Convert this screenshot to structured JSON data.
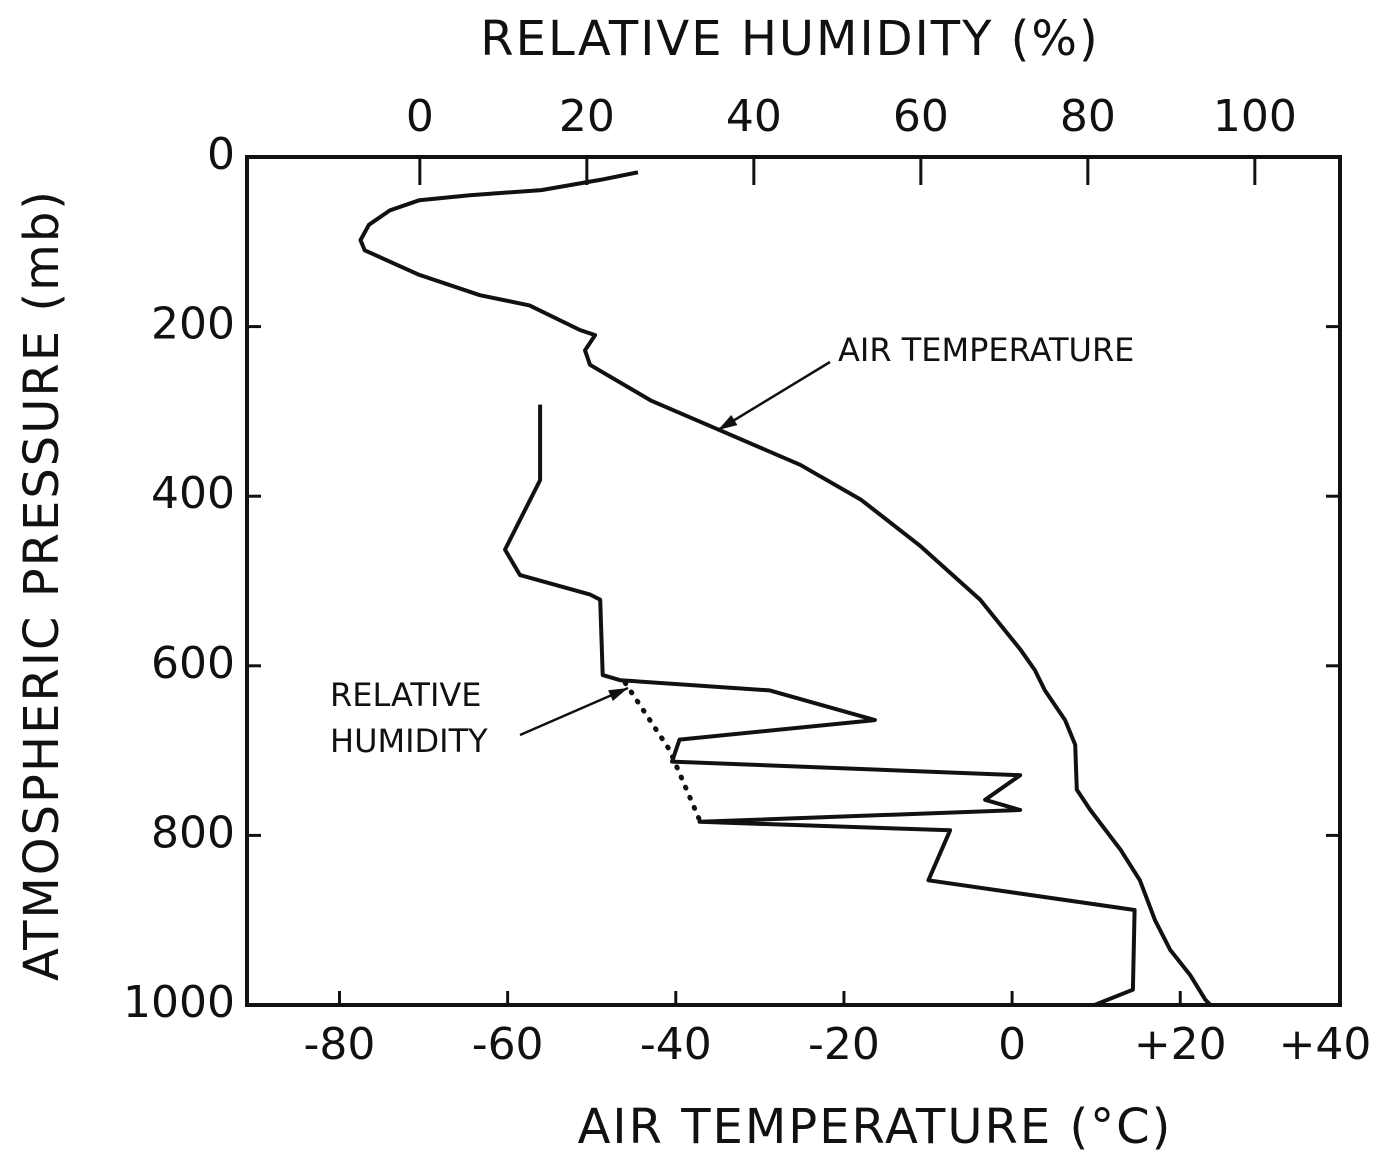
{
  "chart_data": {
    "type": "line",
    "title": "RELATIVE HUMIDITY (%)",
    "x_label": "AIR TEMPERATURE (°C)",
    "y_label": "ATMOSPHERIC PRESSURE (mb)",
    "ylim": [
      0,
      1000
    ],
    "y_inverted": true,
    "yticks": [
      0,
      200,
      400,
      600,
      800,
      1000
    ],
    "xlim": [
      -91,
      39
    ],
    "xticks": [
      -80,
      -60,
      -40,
      -20,
      0,
      {
        "value": 20,
        "label": "+20"
      },
      {
        "value": 40,
        "label": "+40"
      }
    ],
    "x2lim": [
      -20.7,
      110.2
    ],
    "x2ticks": [
      0,
      20,
      40,
      60,
      80,
      100
    ],
    "series": [
      {
        "name": "AIR TEMPERATURE",
        "color": "#111111",
        "xaxis": "x",
        "x": [
          -44.5,
          -49,
          -56,
          -64.5,
          -70.5,
          -74,
          -76.5,
          -77.5,
          -77,
          -70.5,
          -63.3,
          -57.4,
          -51.4,
          -49.6,
          -50.8,
          -50.2,
          -43,
          -34.8,
          -25.2,
          -18,
          -11,
          -3.8,
          1,
          2.7,
          3.9,
          6.3,
          7.5,
          7.7,
          9.3,
          12.9,
          15.2,
          17,
          18.8,
          21.2,
          23,
          23.6
        ],
        "values": [
          18,
          27,
          39,
          45,
          51,
          63,
          80,
          98,
          110,
          139,
          163,
          175,
          204,
          210,
          228,
          245,
          287,
          322,
          363,
          404,
          458,
          522,
          581,
          605,
          629,
          664,
          693,
          746,
          770,
          817,
          853,
          900,
          935,
          965,
          994,
          1000
        ]
      },
      {
        "name": "RELATIVE HUMIDITY",
        "color": "#111111",
        "xaxis": "x2",
        "x": [
          14.4,
          14.4,
          10.2,
          12,
          20.4,
          21.6,
          21.9,
          24,
          41.9,
          54.5,
          31.1,
          30.2,
          71.9,
          67.7,
          71.9,
          33.5,
          63.5,
          60.9,
          85.6,
          85.4,
          80.8
        ],
        "values": [
          292,
          381,
          463,
          493,
          516,
          522,
          611,
          617,
          629,
          664,
          687,
          713,
          729,
          758,
          770,
          784,
          794,
          853,
          888,
          982,
          1000
        ]
      },
      {
        "color": "#111111",
        "xaxis": "x2",
        "style": "dotted",
        "x": [
          24.6,
          29.9,
          33.5
        ],
        "values": [
          620,
          699,
          782
        ]
      }
    ]
  }
}
